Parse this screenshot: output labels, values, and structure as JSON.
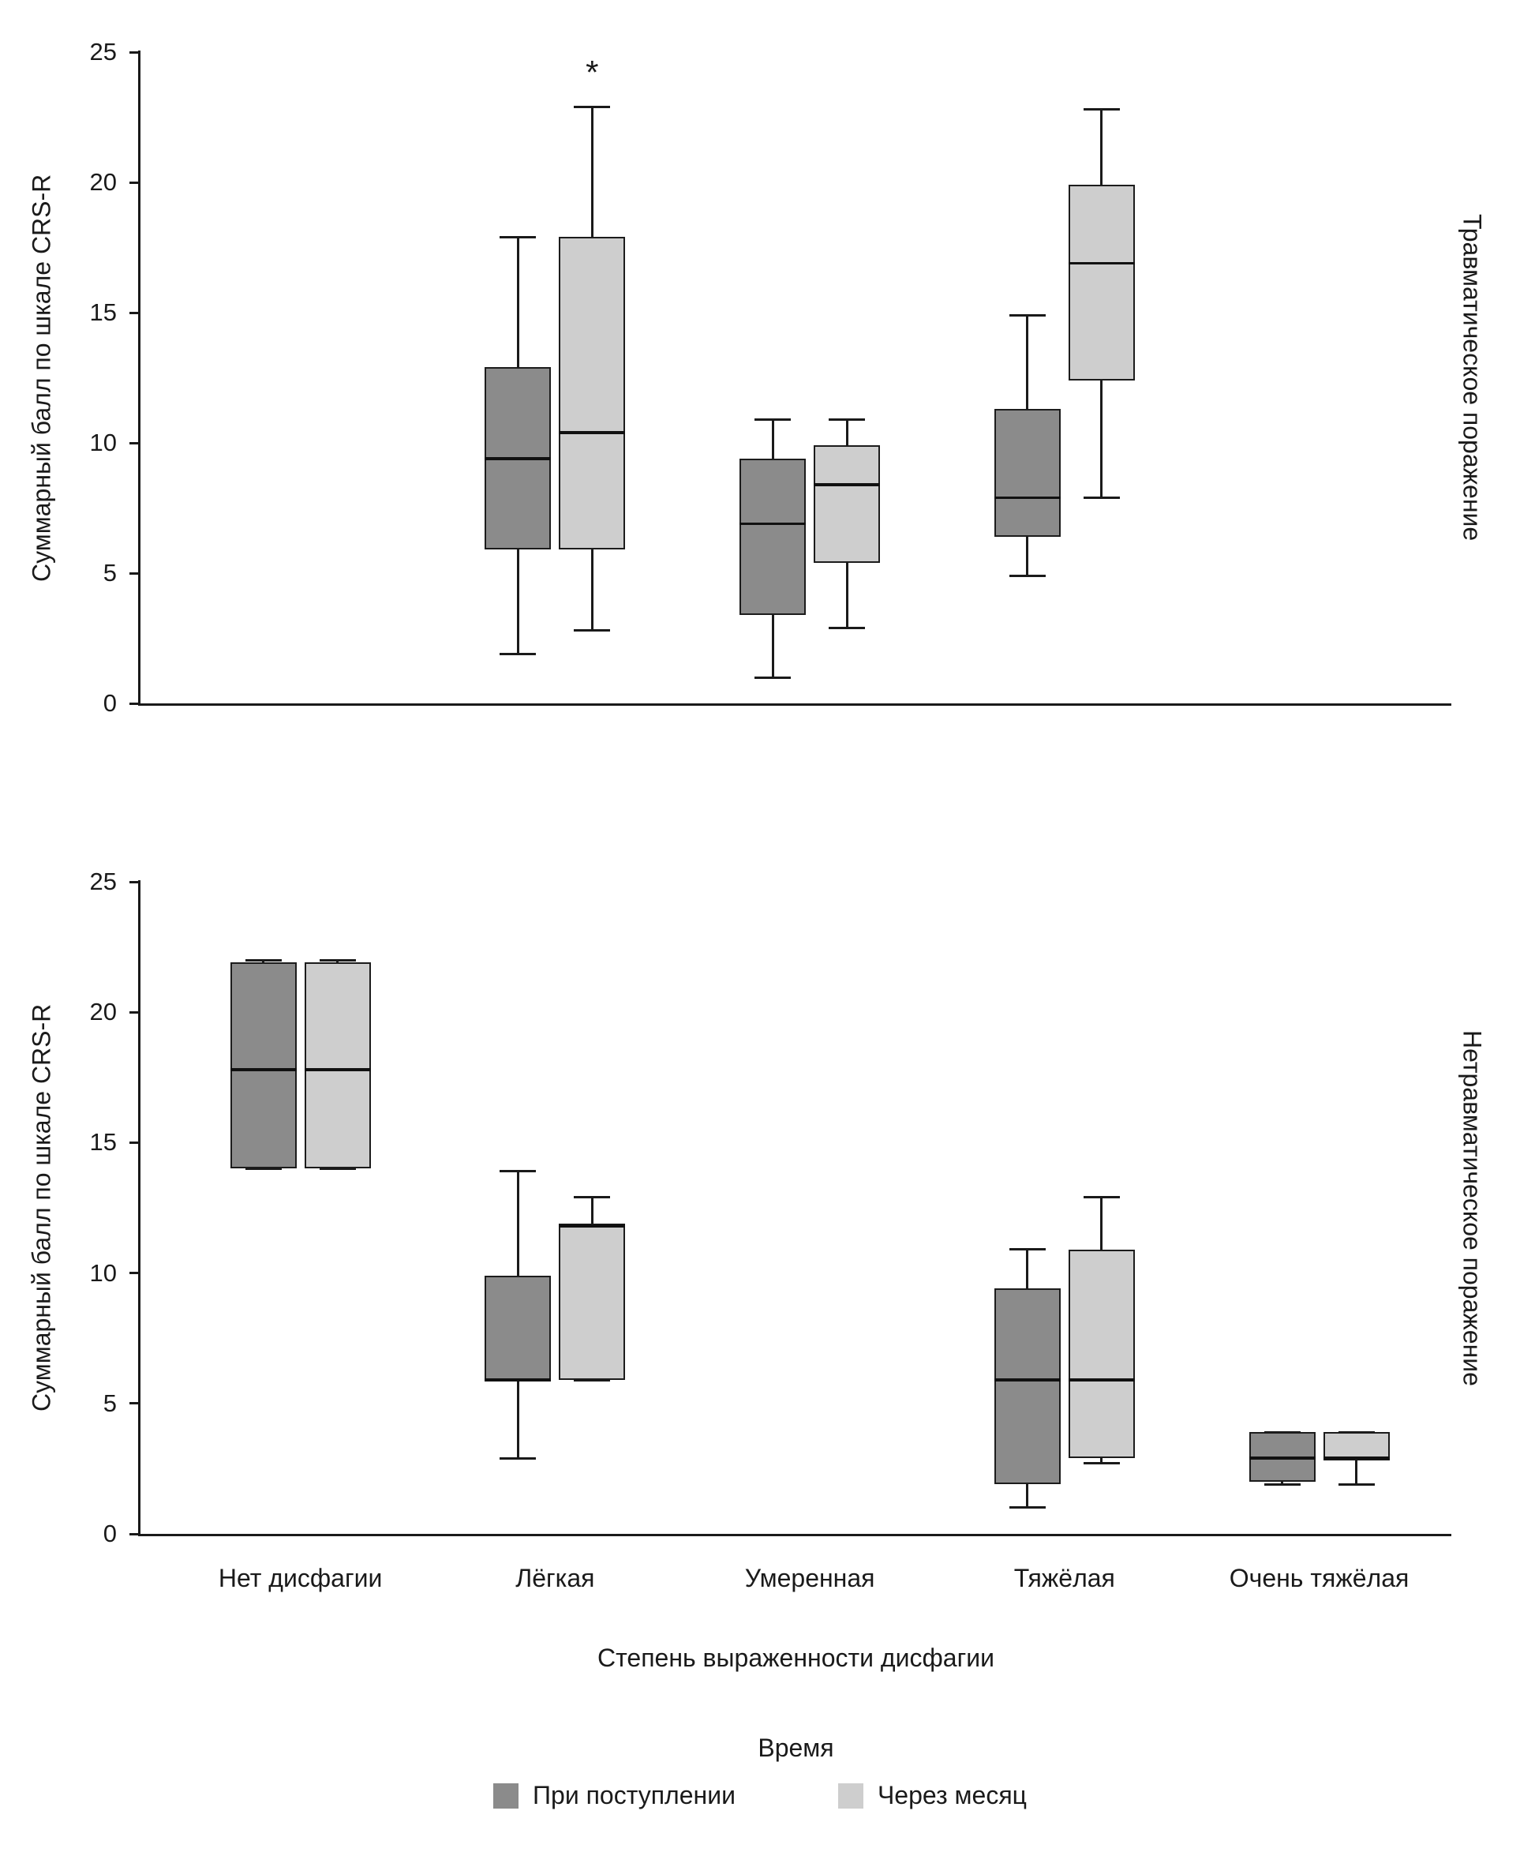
{
  "figure": {
    "xlabel": "Степень выраженности дисфагии",
    "legend_title": "Время",
    "legend": [
      {
        "label": "При поступлении",
        "color": "#8b8b8b"
      },
      {
        "label": "Через месяц",
        "color": "#cecece"
      }
    ]
  },
  "chart_data": [
    {
      "type": "boxplot",
      "side_label": "Травматическое поражение",
      "ylabel": "Суммарный балл по шкале CRS-R",
      "ylim": [
        0,
        25
      ],
      "yticks": [
        0,
        5,
        10,
        15,
        20,
        25
      ],
      "categories": [
        "Нет дисфагии",
        "Лёгкая",
        "Умеренная",
        "Тяжёлая",
        "Очень тяжёлая"
      ],
      "show_x_labels": false,
      "series": [
        {
          "name": "При поступлении",
          "color": "#8b8b8b",
          "boxes": [
            null,
            {
              "min": 1.9,
              "q1": 5.9,
              "median": 9.4,
              "q3": 12.9,
              "max": 17.9
            },
            {
              "min": 1.0,
              "q1": 3.4,
              "median": 6.9,
              "q3": 9.4,
              "max": 10.9
            },
            {
              "min": 4.9,
              "q1": 6.4,
              "median": 7.9,
              "q3": 11.3,
              "max": 14.9
            },
            null
          ]
        },
        {
          "name": "Через месяц",
          "color": "#cecece",
          "boxes": [
            null,
            {
              "min": 2.8,
              "q1": 5.9,
              "median": 10.4,
              "q3": 17.9,
              "max": 22.9,
              "annotation": "*"
            },
            {
              "min": 2.9,
              "q1": 5.4,
              "median": 8.4,
              "q3": 9.9,
              "max": 10.9
            },
            {
              "min": 7.9,
              "q1": 12.4,
              "median": 16.9,
              "q3": 19.9,
              "max": 22.8
            },
            null
          ]
        }
      ]
    },
    {
      "type": "boxplot",
      "side_label": "Нетравматическое поражение",
      "ylabel": "Суммарный балл по шкале CRS-R",
      "ylim": [
        0,
        25
      ],
      "yticks": [
        0,
        5,
        10,
        15,
        20,
        25
      ],
      "categories": [
        "Нет дисфагии",
        "Лёгкая",
        "Умеренная",
        "Тяжёлая",
        "Очень тяжёлая"
      ],
      "show_x_labels": true,
      "series": [
        {
          "name": "При поступлении",
          "color": "#8b8b8b",
          "boxes": [
            {
              "min": 14.0,
              "q1": 14.0,
              "median": 17.8,
              "q3": 21.9,
              "max": 22.0
            },
            {
              "min": 2.9,
              "q1": 5.9,
              "median": 5.9,
              "q3": 9.9,
              "max": 13.9
            },
            null,
            {
              "min": 1.0,
              "q1": 1.9,
              "median": 5.9,
              "q3": 9.4,
              "max": 10.9
            },
            {
              "min": 1.9,
              "q1": 2.0,
              "median": 2.9,
              "q3": 3.9,
              "max": 3.9
            }
          ]
        },
        {
          "name": "Через месяц",
          "color": "#cecece",
          "boxes": [
            {
              "min": 14.0,
              "q1": 14.0,
              "median": 17.8,
              "q3": 21.9,
              "max": 22.0
            },
            {
              "min": 5.9,
              "q1": 5.9,
              "median": 11.8,
              "q3": 11.9,
              "max": 12.9
            },
            null,
            {
              "min": 2.7,
              "q1": 2.9,
              "median": 5.9,
              "q3": 10.9,
              "max": 12.9
            },
            {
              "min": 1.9,
              "q1": 2.8,
              "median": 2.9,
              "q3": 3.9,
              "max": 3.9
            }
          ]
        }
      ]
    }
  ]
}
